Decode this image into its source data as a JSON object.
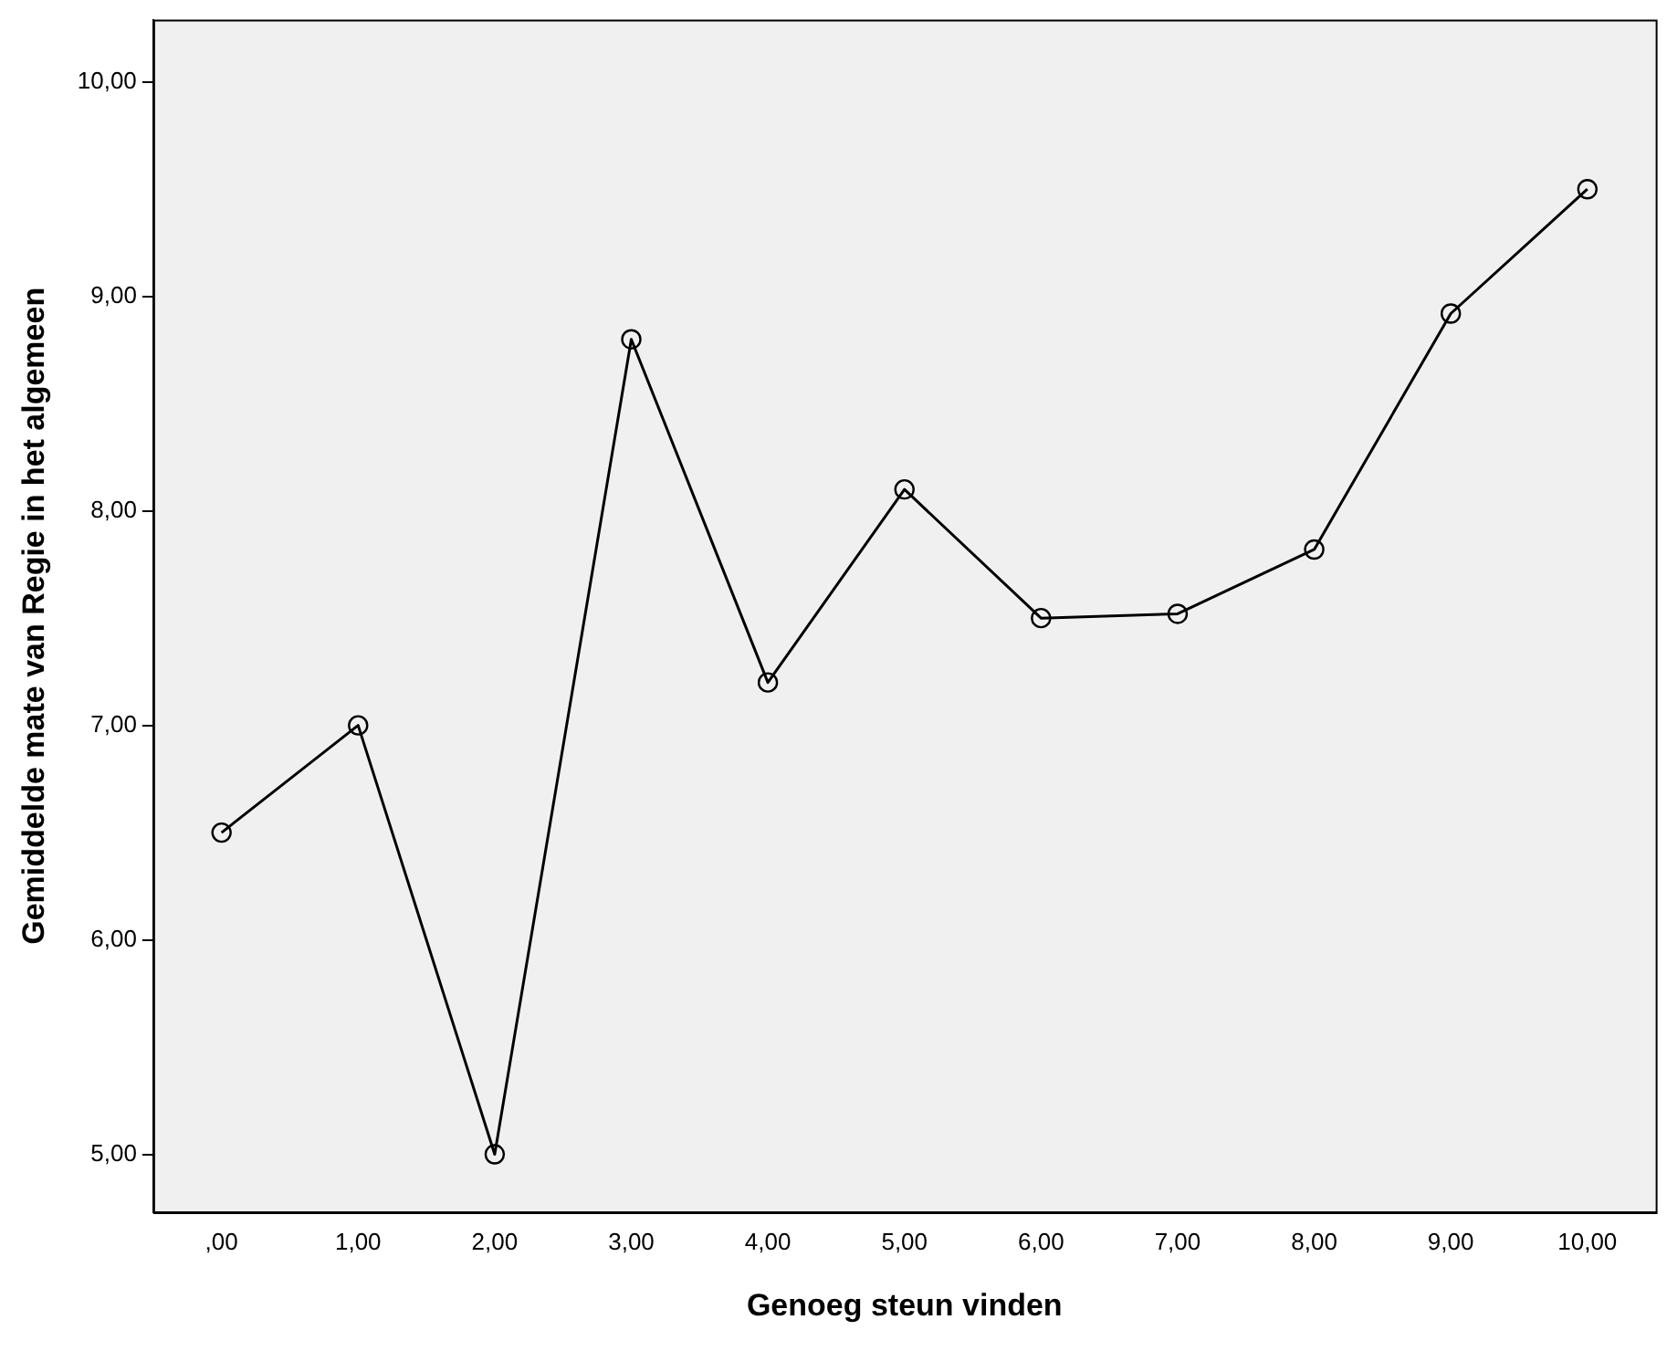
{
  "chart_data": {
    "type": "line",
    "xlabel": "Genoeg steun vinden",
    "ylabel": "Gemiddelde mate van Regie in het algemeen",
    "categories": [
      ",00",
      "1,00",
      "2,00",
      "3,00",
      "4,00",
      "5,00",
      "6,00",
      "7,00",
      "8,00",
      "9,00",
      "10,00"
    ],
    "series": [
      {
        "color": "#000000",
        "values": [
          6.5,
          7.0,
          5.0,
          8.8,
          7.2,
          8.1,
          7.5,
          7.52,
          7.82,
          8.92,
          9.5
        ]
      }
    ],
    "ylim": [
      4.73,
      10.29
    ],
    "yticks": [
      {
        "value": 5,
        "label": "5,00"
      },
      {
        "value": 6,
        "label": "6,00"
      },
      {
        "value": 7,
        "label": "7,00"
      },
      {
        "value": 8,
        "label": "8,00"
      },
      {
        "value": 9,
        "label": "9,00"
      },
      {
        "value": 10,
        "label": "10,00"
      }
    ],
    "grid": false,
    "legend": false,
    "marker": "circle",
    "line_style": "solid"
  }
}
